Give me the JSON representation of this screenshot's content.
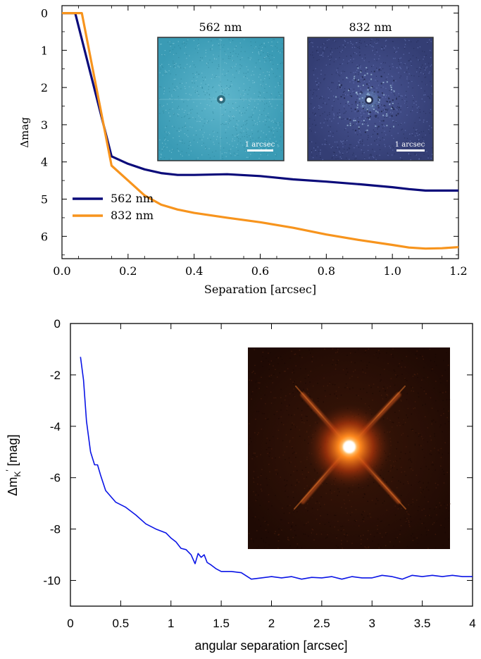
{
  "chart_data": [
    {
      "type": "line",
      "xlabel": "Separation [arcsec]",
      "ylabel": "Δmag",
      "xlim": [
        0.0,
        1.2
      ],
      "ylim": [
        6.6,
        -0.2
      ],
      "y_inverted": true,
      "xticks": [
        "0.0",
        "0.2",
        "0.4",
        "0.6",
        "0.8",
        "1.0",
        "1.2"
      ],
      "yticks": [
        "0",
        "1",
        "2",
        "3",
        "4",
        "5",
        "6"
      ],
      "legend_position": "bottom-left",
      "series": [
        {
          "name": "562 nm",
          "color": "#0b0b7a",
          "points": [
            [
              0.0,
              0.0
            ],
            [
              0.04,
              0.0
            ],
            [
              0.15,
              3.85
            ],
            [
              0.2,
              4.05
            ],
            [
              0.25,
              4.2
            ],
            [
              0.3,
              4.3
            ],
            [
              0.35,
              4.35
            ],
            [
              0.4,
              4.35
            ],
            [
              0.5,
              4.33
            ],
            [
              0.6,
              4.38
            ],
            [
              0.7,
              4.47
            ],
            [
              0.8,
              4.53
            ],
            [
              0.9,
              4.6
            ],
            [
              1.0,
              4.68
            ],
            [
              1.05,
              4.73
            ],
            [
              1.1,
              4.77
            ],
            [
              1.2,
              4.77
            ]
          ]
        },
        {
          "name": "832 nm",
          "color": "#f7941d",
          "points": [
            [
              0.0,
              0.0
            ],
            [
              0.06,
              0.0
            ],
            [
              0.15,
              4.1
            ],
            [
              0.2,
              4.5
            ],
            [
              0.25,
              4.9
            ],
            [
              0.3,
              5.15
            ],
            [
              0.35,
              5.28
            ],
            [
              0.4,
              5.37
            ],
            [
              0.5,
              5.5
            ],
            [
              0.6,
              5.62
            ],
            [
              0.7,
              5.77
            ],
            [
              0.8,
              5.95
            ],
            [
              0.9,
              6.1
            ],
            [
              1.0,
              6.23
            ],
            [
              1.05,
              6.3
            ],
            [
              1.1,
              6.33
            ],
            [
              1.15,
              6.32
            ],
            [
              1.2,
              6.29
            ]
          ]
        }
      ],
      "insets": [
        {
          "title": "562 nm",
          "scalebar_label": "1 arcsec",
          "background": "#3a9bb5"
        },
        {
          "title": "832 nm",
          "scalebar_label": "1 arcsec",
          "background": "#38427a"
        }
      ]
    },
    {
      "type": "line",
      "xlabel": "angular separation [arcsec]",
      "ylabel": "Δm",
      "ylabel_subscript": "K",
      "ylabel_superscript": "′",
      "ylabel_unit": "[mag]",
      "xlim": [
        0,
        4
      ],
      "ylim": [
        -11,
        0
      ],
      "xticks": [
        "0",
        "0.5",
        "1",
        "1.5",
        "2",
        "2.5",
        "3",
        "3.5",
        "4"
      ],
      "yticks": [
        "0",
        "-2",
        "-4",
        "-6",
        "-8",
        "-10"
      ],
      "grid": false,
      "series": [
        {
          "color": "#0a14e6",
          "points": [
            [
              0.1,
              -1.3
            ],
            [
              0.13,
              -2.2
            ],
            [
              0.16,
              -3.8
            ],
            [
              0.2,
              -5.0
            ],
            [
              0.24,
              -5.5
            ],
            [
              0.27,
              -5.5
            ],
            [
              0.3,
              -5.9
            ],
            [
              0.35,
              -6.5
            ],
            [
              0.45,
              -6.95
            ],
            [
              0.55,
              -7.15
            ],
            [
              0.65,
              -7.45
            ],
            [
              0.75,
              -7.8
            ],
            [
              0.85,
              -8.0
            ],
            [
              0.95,
              -8.15
            ],
            [
              1.0,
              -8.35
            ],
            [
              1.05,
              -8.5
            ],
            [
              1.1,
              -8.75
            ],
            [
              1.15,
              -8.8
            ],
            [
              1.2,
              -9.0
            ],
            [
              1.24,
              -9.35
            ],
            [
              1.27,
              -8.95
            ],
            [
              1.3,
              -9.1
            ],
            [
              1.33,
              -9.0
            ],
            [
              1.36,
              -9.3
            ],
            [
              1.4,
              -9.4
            ],
            [
              1.45,
              -9.55
            ],
            [
              1.5,
              -9.65
            ],
            [
              1.6,
              -9.65
            ],
            [
              1.7,
              -9.7
            ],
            [
              1.8,
              -9.95
            ],
            [
              1.9,
              -9.9
            ],
            [
              2.0,
              -9.85
            ],
            [
              2.1,
              -9.9
            ],
            [
              2.2,
              -9.85
            ],
            [
              2.3,
              -9.95
            ],
            [
              2.4,
              -9.88
            ],
            [
              2.5,
              -9.9
            ],
            [
              2.6,
              -9.85
            ],
            [
              2.7,
              -9.95
            ],
            [
              2.8,
              -9.85
            ],
            [
              2.9,
              -9.9
            ],
            [
              3.0,
              -9.9
            ],
            [
              3.1,
              -9.8
            ],
            [
              3.2,
              -9.85
            ],
            [
              3.3,
              -9.95
            ],
            [
              3.4,
              -9.8
            ],
            [
              3.5,
              -9.85
            ],
            [
              3.6,
              -9.8
            ],
            [
              3.7,
              -9.85
            ],
            [
              3.8,
              -9.8
            ],
            [
              3.9,
              -9.85
            ],
            [
              4.0,
              -9.85
            ]
          ]
        }
      ]
    }
  ]
}
